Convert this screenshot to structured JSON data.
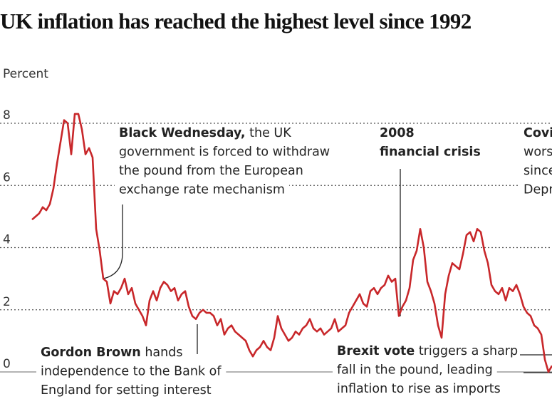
{
  "chart_data": {
    "type": "line",
    "title": "UK inflation has reached the highest level since 1992",
    "y_label": "Percent",
    "ylim": [
      0,
      8
    ],
    "yticks": [
      0,
      2,
      4,
      6,
      8
    ],
    "grid": true,
    "series": [
      {
        "color": "#c8272a",
        "values": [
          4.9,
          5.0,
          5.1,
          5.3,
          5.2,
          5.4,
          5.9,
          6.7,
          7.4,
          8.1,
          8.0,
          7.0,
          8.3,
          8.3,
          7.8,
          7.0,
          7.2,
          6.9,
          4.6,
          3.9,
          3.0,
          2.9,
          2.2,
          2.6,
          2.5,
          2.7,
          3.0,
          2.5,
          2.7,
          2.2,
          2.0,
          1.8,
          1.5,
          2.3,
          2.6,
          2.3,
          2.7,
          2.9,
          2.8,
          2.6,
          2.7,
          2.3,
          2.5,
          2.6,
          2.1,
          1.8,
          1.7,
          1.9,
          2.0,
          1.9,
          1.9,
          1.8,
          1.5,
          1.7,
          1.2,
          1.4,
          1.5,
          1.3,
          1.2,
          1.1,
          1.0,
          0.7,
          0.5,
          0.7,
          0.8,
          1.0,
          0.8,
          0.7,
          1.1,
          1.8,
          1.4,
          1.2,
          1.0,
          1.1,
          1.3,
          1.2,
          1.4,
          1.5,
          1.7,
          1.4,
          1.3,
          1.4,
          1.2,
          1.3,
          1.4,
          1.7,
          1.3,
          1.4,
          1.5,
          1.9,
          2.1,
          2.3,
          2.5,
          2.2,
          2.1,
          2.6,
          2.7,
          2.5,
          2.7,
          2.8,
          3.1,
          2.9,
          3.0,
          1.8,
          2.1,
          2.3,
          2.7,
          3.6,
          3.9,
          4.6,
          4.0,
          2.9,
          2.6,
          2.2,
          1.5,
          1.1,
          2.5,
          3.1,
          3.5,
          3.4,
          3.3,
          3.8,
          4.4,
          4.5,
          4.2,
          4.6,
          4.5,
          3.9,
          3.5,
          2.8,
          2.6,
          2.5,
          2.7,
          2.3,
          2.7,
          2.6,
          2.8,
          2.5,
          2.1,
          1.9,
          1.8,
          1.5,
          1.4,
          1.2,
          0.4,
          0.0,
          0.2
        ]
      }
    ],
    "annotations": [
      {
        "lines": [
          [
            {
              "text": "Black Wednesday,",
              "bold": true
            },
            {
              "text": " the UK"
            }
          ],
          [
            {
              "text": "government is forced to withdraw"
            }
          ],
          [
            {
              "text": "the pound from the European"
            }
          ],
          [
            {
              "text": "exchange rate mechanism"
            }
          ]
        ]
      },
      {
        "lines": [
          [
            {
              "text": "2008",
              "bold": true
            }
          ],
          [
            {
              "text": "financial crisis",
              "bold": true
            }
          ]
        ]
      },
      {
        "lines": [
          [
            {
              "text": "Covi",
              "bold": true
            }
          ],
          [
            {
              "text": "wors"
            }
          ],
          [
            {
              "text": "since"
            }
          ],
          [
            {
              "text": "Depr"
            }
          ]
        ]
      },
      {
        "lines": [
          [
            {
              "text": "Gordon Brown",
              "bold": true
            },
            {
              "text": " hands"
            }
          ],
          [
            {
              "text": "independence to the Bank of"
            }
          ],
          [
            {
              "text": "England for setting interest"
            }
          ]
        ]
      },
      {
        "lines": [
          [
            {
              "text": "Brexit vote",
              "bold": true
            },
            {
              "text": " triggers a sharp"
            }
          ],
          [
            {
              "text": "fall in the pound, leading"
            }
          ],
          [
            {
              "text": "inflation to rise as imports"
            }
          ]
        ]
      }
    ]
  }
}
